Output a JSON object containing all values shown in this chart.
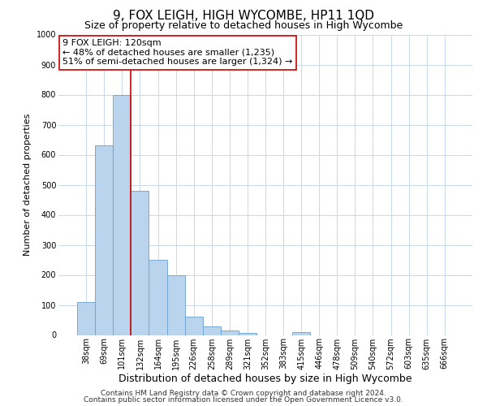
{
  "title": "9, FOX LEIGH, HIGH WYCOMBE, HP11 1QD",
  "subtitle": "Size of property relative to detached houses in High Wycombe",
  "xlabel": "Distribution of detached houses by size in High Wycombe",
  "ylabel": "Number of detached properties",
  "footnote1": "Contains HM Land Registry data © Crown copyright and database right 2024.",
  "footnote2": "Contains public sector information licensed under the Open Government Licence v3.0.",
  "bar_labels": [
    "38sqm",
    "69sqm",
    "101sqm",
    "132sqm",
    "164sqm",
    "195sqm",
    "226sqm",
    "258sqm",
    "289sqm",
    "321sqm",
    "352sqm",
    "383sqm",
    "415sqm",
    "446sqm",
    "478sqm",
    "509sqm",
    "540sqm",
    "572sqm",
    "603sqm",
    "635sqm",
    "666sqm"
  ],
  "bar_values": [
    110,
    630,
    800,
    480,
    250,
    200,
    60,
    28,
    15,
    8,
    0,
    0,
    10,
    0,
    0,
    0,
    0,
    0,
    0,
    0,
    0
  ],
  "bar_color": "#bad4ed",
  "bar_edgecolor": "#6aa0cc",
  "vline_x": 2.5,
  "vline_color": "#cc0000",
  "annotation_line1": "9 FOX LEIGH: 120sqm",
  "annotation_line2": "← 48% of detached houses are smaller (1,235)",
  "annotation_line3": "51% of semi-detached houses are larger (1,324) →",
  "annotation_box_edgecolor": "#cc0000",
  "annotation_fontsize": 8.0,
  "ylim": [
    0,
    1000
  ],
  "yticks": [
    0,
    100,
    200,
    300,
    400,
    500,
    600,
    700,
    800,
    900,
    1000
  ],
  "title_fontsize": 11,
  "subtitle_fontsize": 9,
  "xlabel_fontsize": 9,
  "ylabel_fontsize": 8,
  "tick_fontsize": 7,
  "footnote_fontsize": 6.5,
  "background_color": "#ffffff",
  "grid_color": "#c8d8e8"
}
